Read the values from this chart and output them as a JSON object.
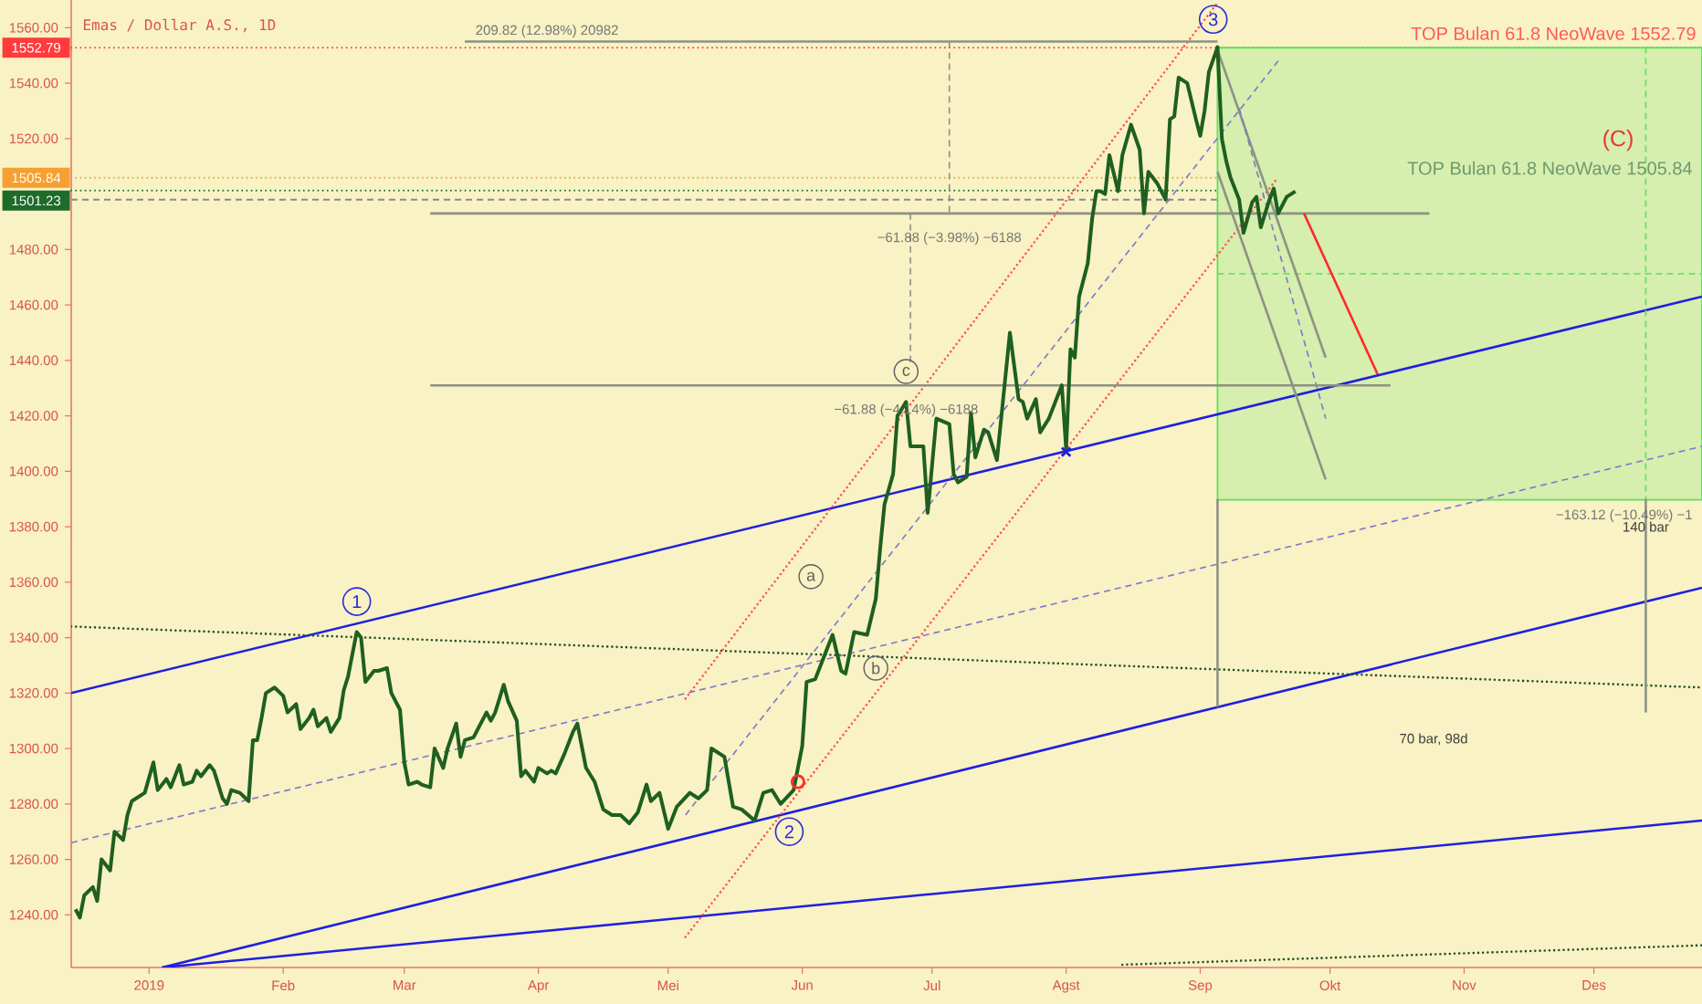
{
  "chart_data": {
    "type": "line",
    "title": "Emas / Dollar A.S., 1D",
    "xlim": [
      "2018-12-14",
      "2019-12-26"
    ],
    "ylim": [
      1221,
      1570
    ],
    "xticks": [
      {
        "value": "2019-01-01",
        "label": "2019"
      },
      {
        "value": "2019-02-01",
        "label": "Feb"
      },
      {
        "value": "2019-03-01",
        "label": "Mar"
      },
      {
        "value": "2019-04-01",
        "label": "Apr"
      },
      {
        "value": "2019-05-01",
        "label": "Mei"
      },
      {
        "value": "2019-06-01",
        "label": "Jun"
      },
      {
        "value": "2019-07-01",
        "label": "Jul"
      },
      {
        "value": "2019-08-01",
        "label": "Agst"
      },
      {
        "value": "2019-09-01",
        "label": "Sep"
      },
      {
        "value": "2019-10-01",
        "label": "Okt"
      },
      {
        "value": "2019-11-01",
        "label": "Nov"
      },
      {
        "value": "2019-12-01",
        "label": "Des"
      }
    ],
    "yticks": [
      {
        "value": 1240,
        "label": "1240.00"
      },
      {
        "value": 1260,
        "label": "1260.00"
      },
      {
        "value": 1280,
        "label": "1280.00"
      },
      {
        "value": 1300,
        "label": "1300.00"
      },
      {
        "value": 1320,
        "label": "1320.00"
      },
      {
        "value": 1340,
        "label": "1340.00"
      },
      {
        "value": 1360,
        "label": "1360.00"
      },
      {
        "value": 1380,
        "label": "1380.00"
      },
      {
        "value": 1400,
        "label": "1400.00"
      },
      {
        "value": 1420,
        "label": "1420.00"
      },
      {
        "value": 1440,
        "label": "1440.00"
      },
      {
        "value": 1460,
        "label": "1460.00"
      },
      {
        "value": 1480,
        "label": "1480.00"
      },
      {
        "value": 1520,
        "label": "1520.00"
      },
      {
        "value": 1540,
        "label": "1540.00"
      },
      {
        "value": 1560,
        "label": "1560.00"
      }
    ],
    "series": [
      {
        "type": "line",
        "color": "#5ee05e",
        "line_style": "dashed",
        "x": [
          "2019-09-05",
          "2019-12-26"
        ],
        "values": [
          1471.2,
          1471.2
        ],
        "lower": [
          1389.67,
          1389.67
        ],
        "upper": [
          1552.79,
          1552.79
        ]
      },
      {
        "type": "line",
        "color": "#1f1fe0",
        "line_style": "solid",
        "x": [
          "2018-12-14",
          "2019-12-26"
        ],
        "values": [
          1320,
          1463
        ]
      },
      {
        "type": "line",
        "color": "#1f1fe0",
        "line_style": "solid",
        "x": [
          "2019-01-04",
          "2019-12-26"
        ],
        "values": [
          1221,
          1358
        ]
      },
      {
        "type": "line",
        "color": "#1f1fe0",
        "line_style": "solid",
        "x": [
          "2019-01-04",
          "2019-12-26"
        ],
        "values": [
          1221,
          1274
        ]
      },
      {
        "type": "line",
        "color": "#24502a",
        "line_style": "dotted",
        "x": [
          "2018-12-14",
          "2019-12-26"
        ],
        "values": [
          1344,
          1322
        ]
      },
      {
        "type": "line",
        "color": "#24502a",
        "line_style": "dotted",
        "x": [
          "2019-08-14",
          "2019-12-26"
        ],
        "values": [
          1222,
          1229
        ]
      },
      {
        "type": "line",
        "color": "#8077c8",
        "line_style": "dashed",
        "x": [
          "2018-12-14",
          "2019-12-26"
        ],
        "values": [
          1266,
          1409
        ]
      },
      {
        "type": "line",
        "color": "#8077c8",
        "line_style": "dashed",
        "x": [
          "2019-05-05",
          "2019-09-19"
        ],
        "values": [
          1276,
          1548
        ]
      },
      {
        "type": "line",
        "color": "#ff5555",
        "line_style": "dotted",
        "x": [
          "2019-05-05",
          "2019-09-05"
        ],
        "values": [
          1318,
          1569
        ]
      },
      {
        "type": "line",
        "color": "#ff5555",
        "line_style": "dotted",
        "x": [
          "2019-05-05",
          "2019-09-19"
        ],
        "values": [
          1232,
          1506
        ]
      },
      {
        "type": "line",
        "color": "#8e9282",
        "line_style": "solid",
        "x": [
          "2019-09-05",
          "2019-09-30"
        ],
        "values": [
          1552,
          1441
        ]
      },
      {
        "type": "line",
        "color": "#8e9282",
        "line_style": "solid",
        "x": [
          "2019-09-05",
          "2019-09-30"
        ],
        "values": [
          1508,
          1397
        ]
      },
      {
        "type": "line",
        "color": "#8077c8",
        "line_style": "dashed",
        "x": [
          "2019-09-10",
          "2019-09-30"
        ],
        "values": [
          1531,
          1419
        ]
      },
      {
        "type": "line",
        "color": "#8e9282",
        "line_style": "solid",
        "x": [
          "2019-03-15",
          "2019-09-05"
        ],
        "values": [
          1555,
          1555
        ]
      },
      {
        "type": "line",
        "color": "#8e9282",
        "line_style": "solid",
        "x": [
          "2019-03-07",
          "2019-10-24"
        ],
        "values": [
          1493,
          1493
        ]
      },
      {
        "type": "line",
        "color": "#8e9282",
        "line_style": "solid",
        "x": [
          "2019-03-07",
          "2019-10-15"
        ],
        "values": [
          1431,
          1431
        ]
      },
      {
        "type": "line",
        "color": "#8e8e8e",
        "line_style": "dashed",
        "x": [
          "2019-07-05",
          "2019-07-05"
        ],
        "values": [
          1555,
          1493
        ]
      },
      {
        "type": "line",
        "color": "#8e8e8e",
        "line_style": "dashed",
        "x": [
          "2019-06-26",
          "2019-06-26"
        ],
        "values": [
          1493,
          1438
        ]
      },
      {
        "type": "line",
        "color": "#5ee05e",
        "line_style": "dashed",
        "x": [
          "2019-12-13",
          "2019-12-13"
        ],
        "values": [
          1553,
          1390
        ]
      },
      {
        "type": "line",
        "color": "#8e9282",
        "line_style": "solid",
        "x": [
          "2019-09-05",
          "2019-09-05"
        ],
        "values": [
          1390,
          1315
        ]
      },
      {
        "type": "line",
        "color": "#8e9282",
        "line_style": "solid",
        "x": [
          "2019-12-13",
          "2019-12-13"
        ],
        "values": [
          1390,
          1313
        ]
      },
      {
        "type": "line",
        "color": "#ff2a2a",
        "line_style": "solid",
        "x": [
          "2019-09-25",
          "2019-10-12"
        ],
        "values": [
          1493,
          1435
        ]
      },
      {
        "type": "line",
        "color": "#1f5f1f",
        "line_style": "solid",
        "x": [
          "2018-12-15",
          "2018-12-16",
          "2018-12-17",
          "2018-12-19",
          "2018-12-20",
          "2018-12-21",
          "2018-12-23",
          "2018-12-24",
          "2018-12-26",
          "2018-12-27",
          "2018-12-28",
          "2018-12-31",
          "2019-01-02",
          "2019-01-03",
          "2019-01-05",
          "2019-01-06",
          "2019-01-08",
          "2019-01-09",
          "2019-01-11",
          "2019-01-12",
          "2019-01-13",
          "2019-01-15",
          "2019-01-16",
          "2019-01-18",
          "2019-01-19",
          "2019-01-20",
          "2019-01-22",
          "2019-01-24",
          "2019-01-25",
          "2019-01-26",
          "2019-01-27",
          "2019-01-28",
          "2019-01-30",
          "2019-02-01",
          "2019-02-02",
          "2019-02-04",
          "2019-02-05",
          "2019-02-07",
          "2019-02-08",
          "2019-02-09",
          "2019-02-11",
          "2019-02-12",
          "2019-02-14",
          "2019-02-15",
          "2019-02-16",
          "2019-02-18",
          "2019-02-19",
          "2019-02-20",
          "2019-02-22",
          "2019-02-23",
          "2019-02-25",
          "2019-02-26",
          "2019-02-28",
          "2019-03-01",
          "2019-03-02",
          "2019-03-04",
          "2019-03-05",
          "2019-03-07",
          "2019-03-08",
          "2019-03-10",
          "2019-03-11",
          "2019-03-13",
          "2019-03-14",
          "2019-03-15",
          "2019-03-17",
          "2019-03-18",
          "2019-03-20",
          "2019-03-21",
          "2019-03-22",
          "2019-03-24",
          "2019-03-25",
          "2019-03-27",
          "2019-03-28",
          "2019-03-29",
          "2019-03-31",
          "2019-04-01",
          "2019-04-03",
          "2019-04-04",
          "2019-04-05",
          "2019-04-07",
          "2019-04-09",
          "2019-04-10",
          "2019-04-12",
          "2019-04-14",
          "2019-04-16",
          "2019-04-18",
          "2019-04-20",
          "2019-04-22",
          "2019-04-24",
          "2019-04-26",
          "2019-04-27",
          "2019-04-29",
          "2019-05-01",
          "2019-05-03",
          "2019-05-06",
          "2019-05-08",
          "2019-05-10",
          "2019-05-11",
          "2019-05-14",
          "2019-05-16",
          "2019-05-18",
          "2019-05-21",
          "2019-05-23",
          "2019-05-25",
          "2019-05-27",
          "2019-05-30",
          "2019-06-01",
          "2019-06-02",
          "2019-06-04",
          "2019-06-06",
          "2019-06-08",
          "2019-06-10",
          "2019-06-11",
          "2019-06-13",
          "2019-06-16",
          "2019-06-18",
          "2019-06-19",
          "2019-06-20",
          "2019-06-22",
          "2019-06-23",
          "2019-06-25",
          "2019-06-26",
          "2019-06-29",
          "2019-06-30",
          "2019-07-02",
          "2019-07-05",
          "2019-07-06",
          "2019-07-07",
          "2019-07-09",
          "2019-07-10",
          "2019-07-11",
          "2019-07-13",
          "2019-07-14",
          "2019-07-16",
          "2019-07-19",
          "2019-07-21",
          "2019-07-22",
          "2019-07-23",
          "2019-07-25",
          "2019-07-26",
          "2019-07-28",
          "2019-07-30",
          "2019-07-31",
          "2019-08-01",
          "2019-08-02",
          "2019-08-03",
          "2019-08-04",
          "2019-08-05",
          "2019-08-06",
          "2019-08-07",
          "2019-08-08",
          "2019-08-09",
          "2019-08-10",
          "2019-08-11",
          "2019-08-13",
          "2019-08-14",
          "2019-08-16",
          "2019-08-18",
          "2019-08-19",
          "2019-08-20",
          "2019-08-22",
          "2019-08-24",
          "2019-08-25",
          "2019-08-26",
          "2019-08-27",
          "2019-08-29",
          "2019-08-31",
          "2019-09-01",
          "2019-09-02",
          "2019-09-03",
          "2019-09-05",
          "2019-09-06",
          "2019-09-07",
          "2019-09-08",
          "2019-09-10",
          "2019-09-11",
          "2019-09-13",
          "2019-09-14",
          "2019-09-15",
          "2019-09-17",
          "2019-09-18",
          "2019-09-19",
          "2019-09-21",
          "2019-09-23"
        ],
        "values": [
          1242,
          1239,
          1247,
          1250,
          1245,
          1260,
          1256,
          1270,
          1267,
          1276,
          1281,
          1284,
          1295,
          1285,
          1289,
          1286,
          1294,
          1287,
          1288,
          1292,
          1290,
          1294,
          1292,
          1282,
          1280,
          1285,
          1284,
          1281,
          1303,
          1303,
          1311,
          1320,
          1322,
          1319,
          1313,
          1316,
          1307,
          1311,
          1314,
          1308,
          1311,
          1306,
          1311,
          1321,
          1326,
          1342,
          1340,
          1324,
          1328,
          1328,
          1329,
          1320,
          1314,
          1295,
          1287,
          1288,
          1287,
          1286,
          1300,
          1293,
          1300,
          1309,
          1297,
          1303,
          1304,
          1307,
          1313,
          1310,
          1313,
          1323,
          1317,
          1310,
          1290,
          1292,
          1288,
          1293,
          1291,
          1292,
          1291,
          1298,
          1306,
          1309,
          1293,
          1288,
          1278,
          1276,
          1276,
          1273,
          1277,
          1287,
          1281,
          1284,
          1271,
          1279,
          1284,
          1282,
          1285,
          1300,
          1297,
          1279,
          1278,
          1274,
          1284,
          1285,
          1280,
          1285,
          1301,
          1324,
          1325,
          1333,
          1341,
          1328,
          1327,
          1342,
          1341,
          1354,
          1372,
          1388,
          1399,
          1420,
          1425,
          1409,
          1409,
          1385,
          1419,
          1417,
          1399,
          1396,
          1398,
          1421,
          1405,
          1415,
          1414,
          1404,
          1450,
          1426,
          1425,
          1419,
          1426,
          1414,
          1419,
          1427,
          1431,
          1408,
          1444,
          1441,
          1463,
          1469,
          1475,
          1491,
          1501,
          1501,
          1500,
          1514,
          1501,
          1514,
          1525,
          1516,
          1493,
          1508,
          1504,
          1498,
          1527,
          1528,
          1542,
          1540,
          1527,
          1521,
          1530,
          1544,
          1553,
          1520,
          1512,
          1506,
          1498,
          1486,
          1497,
          1499,
          1488,
          1498,
          1502,
          1493,
          1499,
          1501
        ]
      },
      {
        "type": "scatter",
        "marker": "cross",
        "color": "#1f1fe0",
        "x": [
          "2019-08-01"
        ],
        "values": [
          1407
        ]
      },
      {
        "type": "scatter",
        "marker": "circle",
        "color": "#ff2a2a",
        "x": [
          "2019-05-31"
        ],
        "values": [
          1288
        ]
      }
    ],
    "ref_lines": [
      {
        "axis": "y",
        "value": 1552.79,
        "label": "1552.79",
        "color": "#ff3b3b",
        "line_style": "dotted"
      },
      {
        "axis": "y",
        "value": 1505.84,
        "label": "1505.84",
        "color": "#f5a030",
        "line_style": "dotted"
      },
      {
        "axis": "y",
        "value": 1501.23,
        "label": "1501.23",
        "color": "#1e6b2a",
        "line_style": "dotted"
      },
      {
        "axis": "y",
        "value": 1498,
        "color": "#8a8a8a",
        "line_style": "dashed"
      }
    ],
    "annotations": [
      {
        "text": "209.82 (12.98%) 20982",
        "x": "2019-04-03",
        "y": 1555
      },
      {
        "text": "TOP Bulan 61.8 NeoWave 1552.79",
        "x": "2019-12-26",
        "y": 1552.79
      },
      {
        "text": "TOP Bulan 61.8 NeoWave 1505.84",
        "x": "2019-12-26",
        "y": 1505.84
      },
      "(C)",
      {
        "text": "−61.88 (−3.98%) −6188",
        "x": "2019-07-05",
        "y": 1493
      },
      {
        "text": "−61.88 (−4.14%) −6188",
        "x": "2019-06-25",
        "y": 1431
      },
      {
        "text": "−163.12 (−10.49%) −1",
        "x": "2019-12-08",
        "y": 1389.67
      },
      {
        "text": "140 bar",
        "x": "2019-12-13",
        "y": 1380
      },
      "70 bar, 98d",
      {
        "text": "1",
        "x": "2019-02-18",
        "y": 1353
      },
      {
        "text": "2",
        "x": "2019-05-29",
        "y": 1270
      },
      {
        "text": "3",
        "x": "2019-09-04",
        "y": 1563
      },
      {
        "text": "a",
        "x": "2019-06-03",
        "y": 1362
      },
      {
        "text": "b",
        "x": "2019-06-18",
        "y": 1329
      },
      {
        "text": "c",
        "x": "2019-06-25",
        "y": 1436
      }
    ]
  }
}
